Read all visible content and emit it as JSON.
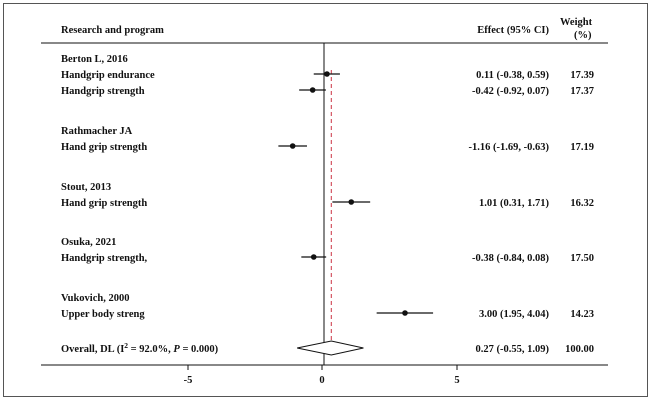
{
  "chart_data": {
    "type": "forest",
    "header": {
      "study": "Research and program",
      "effect": "Effect (95% CI)",
      "weight_line1": "Weight",
      "weight_line2": "(%)"
    },
    "groups": [
      {
        "title": "Berton L, 2016",
        "rows": [
          {
            "label": "Handgrip endurance",
            "effect": 0.11,
            "lo": -0.38,
            "hi": 0.59,
            "effect_text": "0.11 (-0.38, 0.59)",
            "weight": "17.39"
          },
          {
            "label": "Handgrip strength",
            "effect": -0.42,
            "lo": -0.92,
            "hi": 0.07,
            "effect_text": "-0.42 (-0.92, 0.07)",
            "weight": "17.37"
          }
        ]
      },
      {
        "title": "Rathmacher JA",
        "rows": [
          {
            "label": "Hand grip strength",
            "effect": -1.16,
            "lo": -1.69,
            "hi": -0.63,
            "effect_text": "-1.16 (-1.69, -0.63)",
            "weight": "17.19"
          }
        ]
      },
      {
        "title": "Stout, 2013",
        "rows": [
          {
            "label": "Hand grip strength",
            "effect": 1.01,
            "lo": 0.31,
            "hi": 1.71,
            "effect_text": "1.01 (0.31, 1.71)",
            "weight": "16.32"
          }
        ]
      },
      {
        "title": "Osuka, 2021",
        "rows": [
          {
            "label": "Handgrip strength,",
            "effect": -0.38,
            "lo": -0.84,
            "hi": 0.08,
            "effect_text": "-0.38 (-0.84, 0.08)",
            "weight": "17.50"
          }
        ]
      },
      {
        "title": "Vukovich, 2000",
        "rows": [
          {
            "label": "Upper body streng",
            "effect": 3.0,
            "lo": 1.95,
            "hi": 4.04,
            "effect_text": "3.00 (1.95, 4.04)",
            "weight": "14.23"
          }
        ]
      }
    ],
    "overall": {
      "label_prefix": "Overall, DL (I",
      "label_sup": "2",
      "label_mid": " = 92.0%, ",
      "label_p": "P",
      "label_suffix": " = 0.000)",
      "effect": 0.27,
      "lo": -0.55,
      "hi": 1.09,
      "effect_text": "0.27 (-0.55, 1.09)",
      "weight": "100.00"
    },
    "x_ticks": [
      -5,
      0,
      5
    ],
    "x_tick_labels": [
      "-5",
      "0",
      "5"
    ],
    "xlim": [
      -5.5,
      5
    ],
    "null_line": 0
  }
}
